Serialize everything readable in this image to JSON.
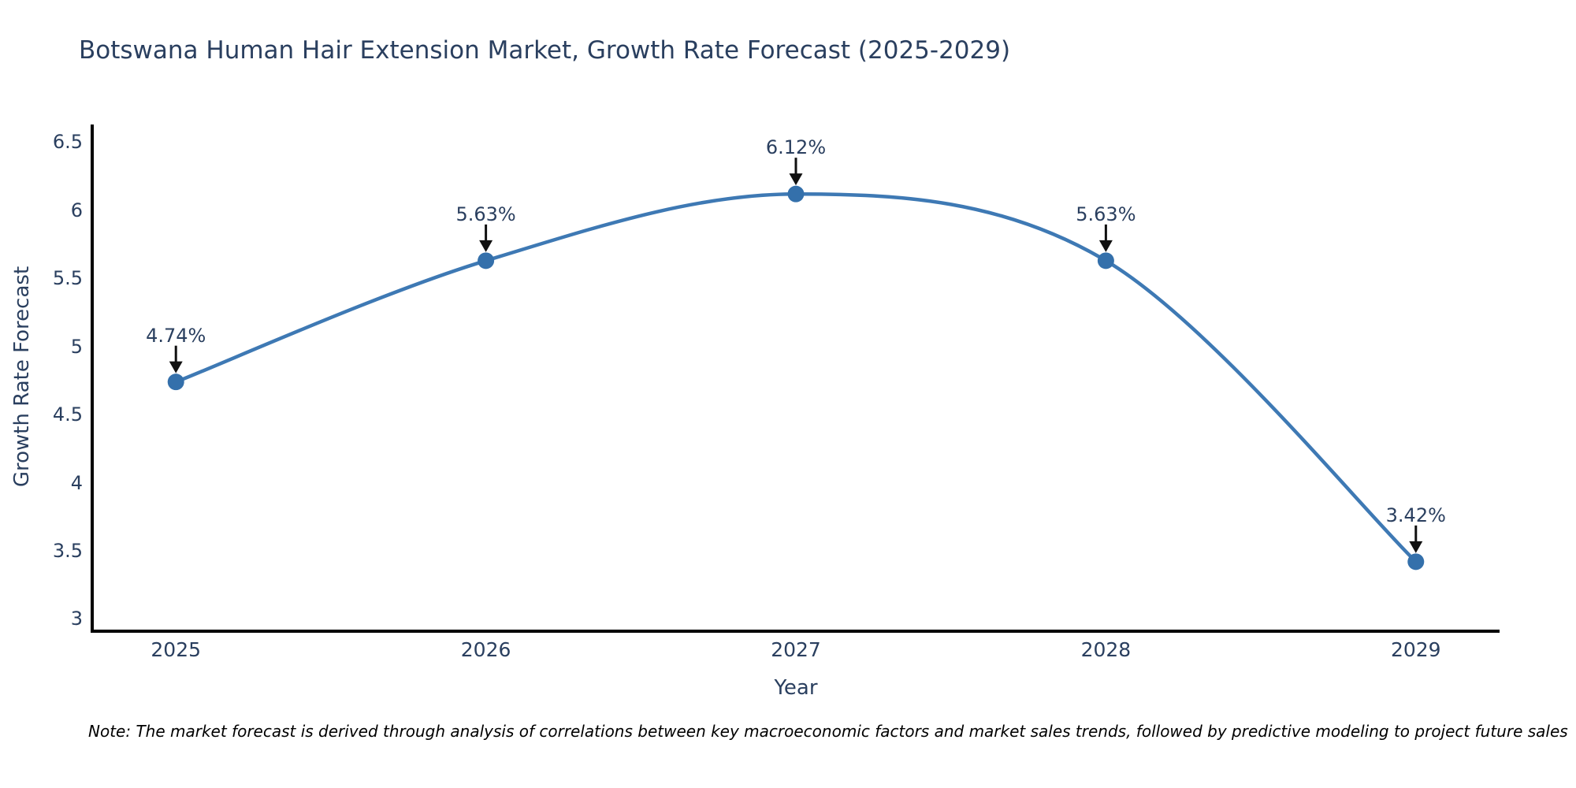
{
  "title": "Botswana Human Hair Extension Market, Growth Rate Forecast (2025-2029)",
  "note": "Note: The market forecast is derived through analysis of correlations between key macroeconomic factors and market sales trends, followed by predictive modeling to project future sales",
  "chart_data": {
    "type": "line",
    "title": "Botswana Human Hair Extension Market, Growth Rate Forecast (2025-2029)",
    "xlabel": "Year",
    "ylabel": "Growth Rate Forecast",
    "x": [
      2025,
      2026,
      2027,
      2028,
      2029
    ],
    "values": [
      4.74,
      5.63,
      6.12,
      5.63,
      3.42
    ],
    "point_labels": [
      "4.74%",
      "5.63%",
      "6.12%",
      "5.63%",
      "3.42%"
    ],
    "xticks": [
      "2025",
      "2026",
      "2027",
      "2028",
      "2029"
    ],
    "yticks": [
      3,
      3.5,
      4,
      4.5,
      5,
      5.5,
      6,
      6.5
    ],
    "ylim": [
      2.91,
      6.63
    ],
    "xlim": [
      2024.73,
      2029.27
    ],
    "line_shape": "spline",
    "grid": false,
    "legend": false,
    "annotations_have_arrows": true,
    "colors": {
      "line": "#3e79b4",
      "marker": "#3470ab",
      "arrow": "#111111",
      "axis": "#000000",
      "text": "#2a3f5f",
      "note_text": "#000000",
      "background": "#ffffff"
    }
  }
}
